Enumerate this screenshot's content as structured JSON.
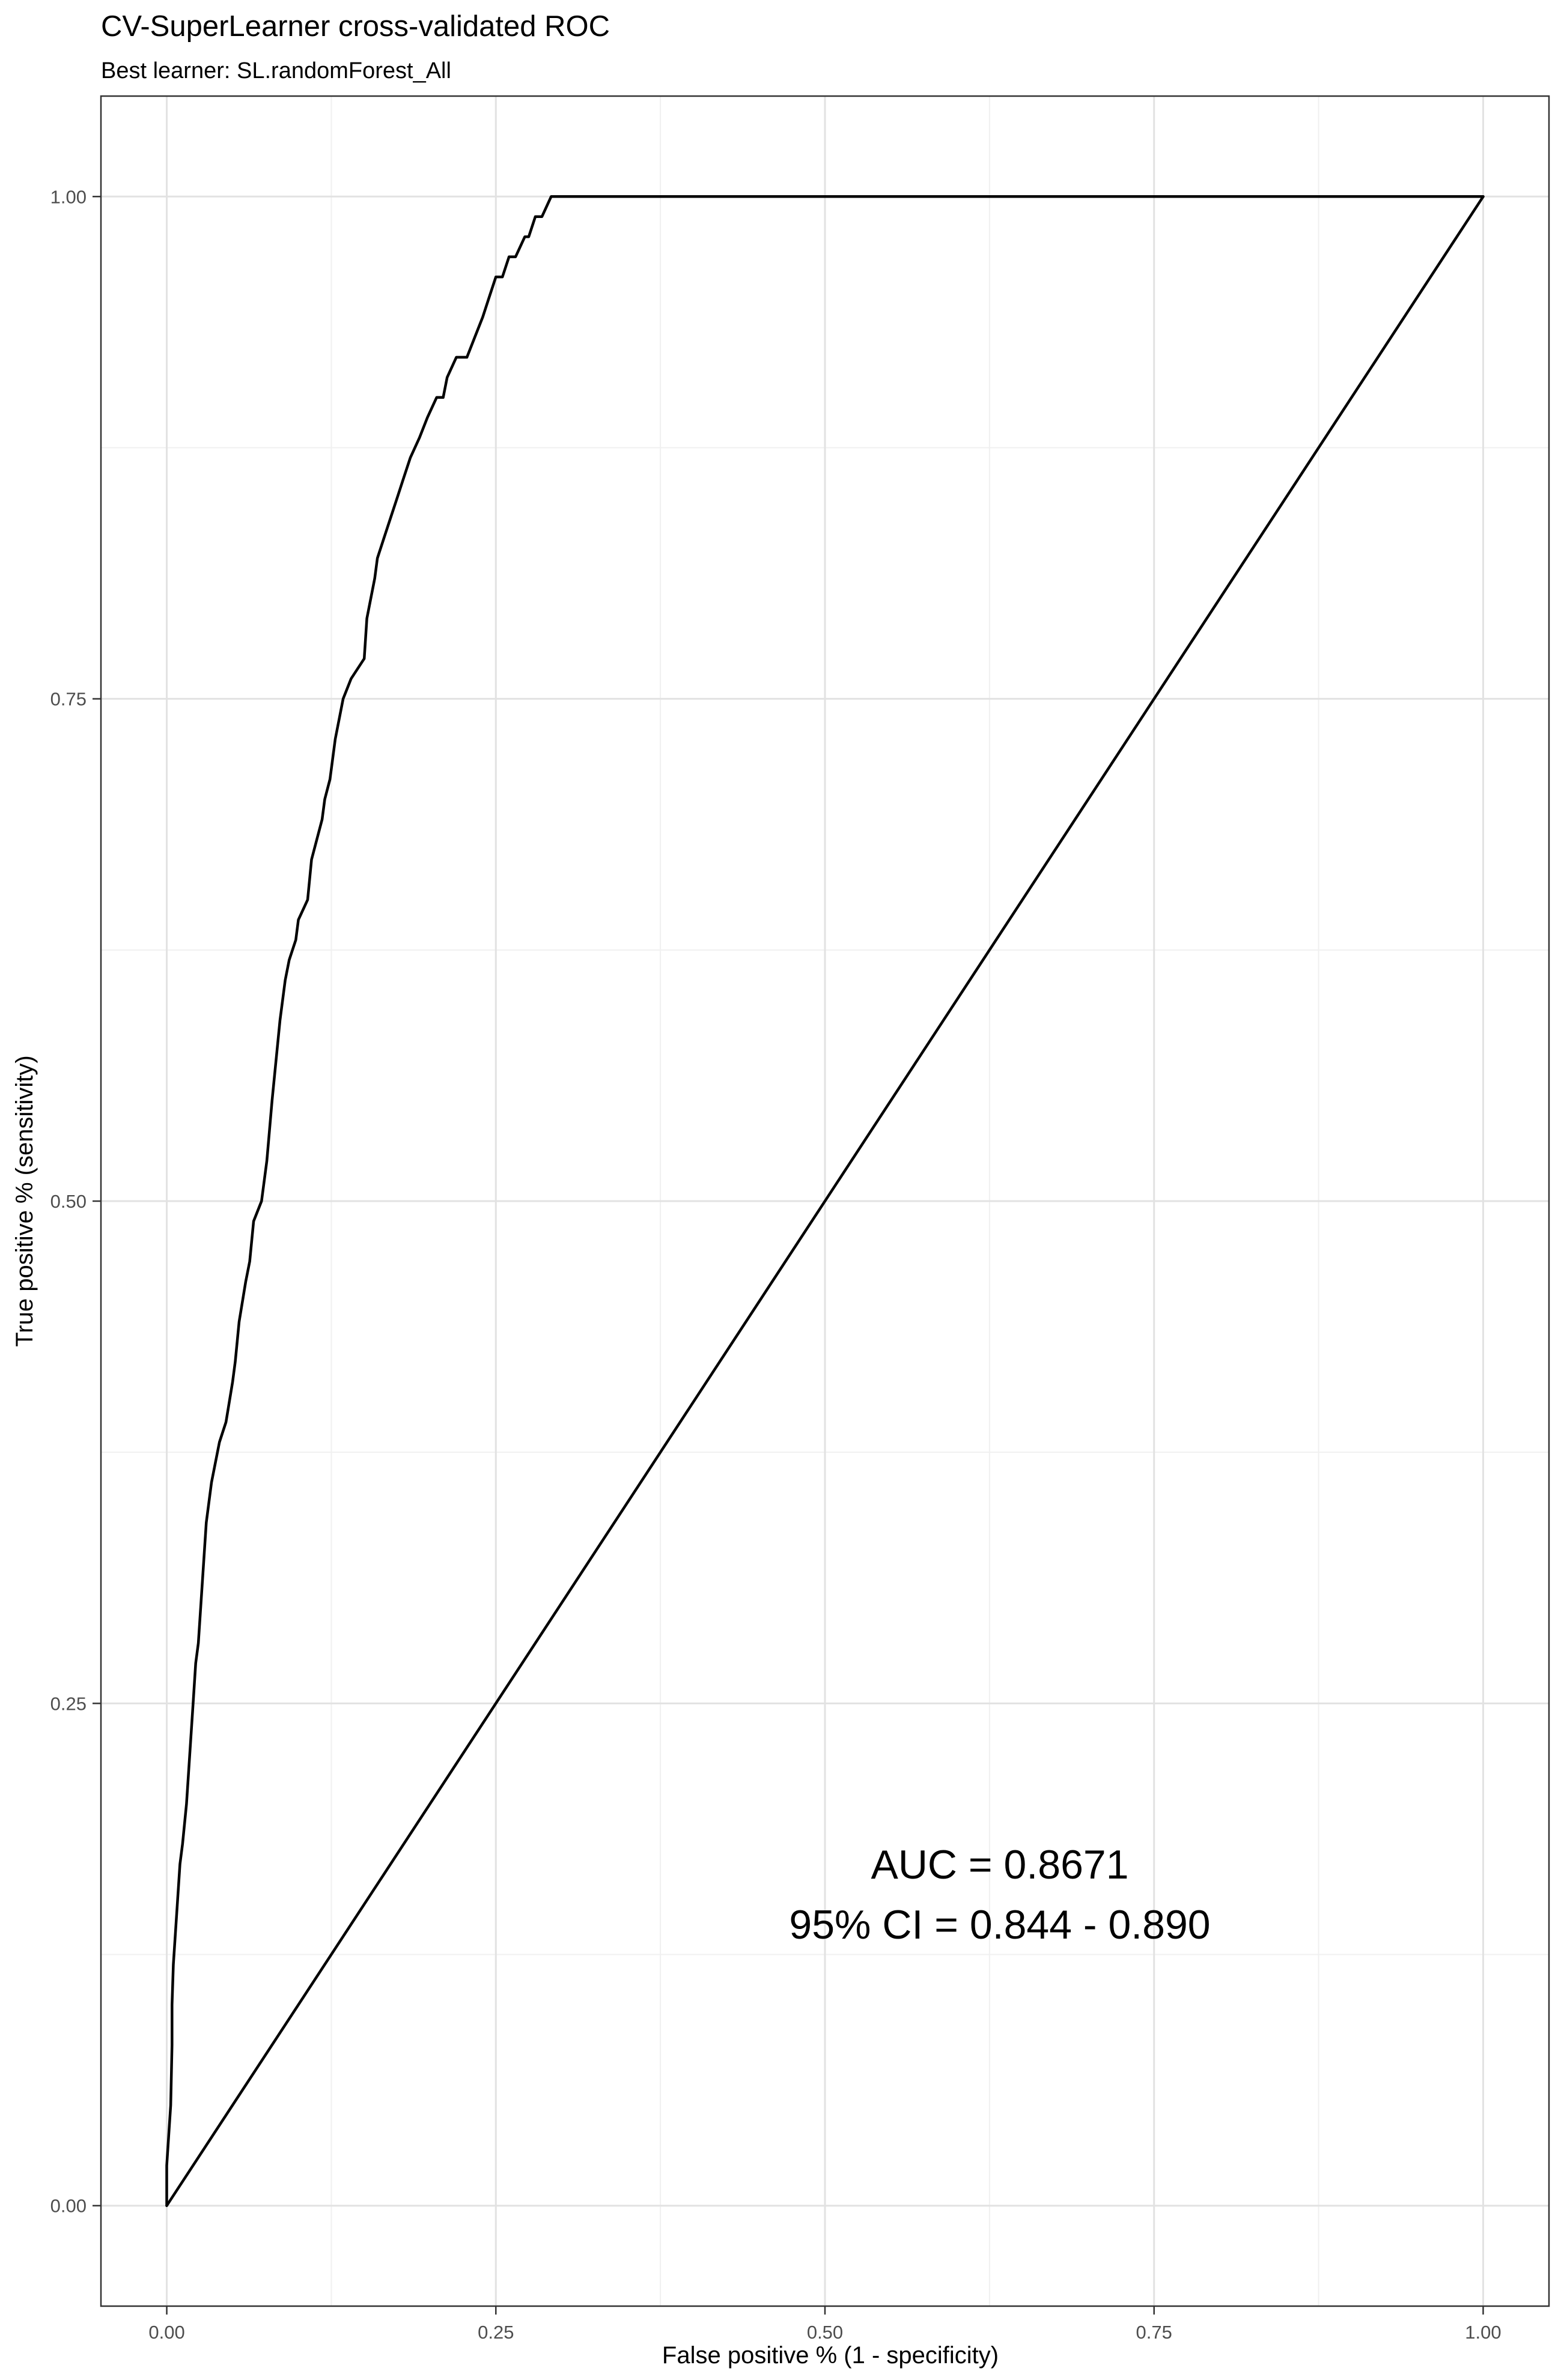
{
  "chart_data": {
    "type": "line",
    "title": "CV-SuperLearner cross-validated ROC",
    "subtitle": "Best learner: SL.randomForest_All",
    "xlabel": "False positive % (1 - specificity)",
    "ylabel": "True positive % (sensitivity)",
    "xlim": [
      -0.05,
      1.05
    ],
    "ylim": [
      -0.05,
      1.05
    ],
    "grid": true,
    "x_ticks": [
      0.0,
      0.25,
      0.5,
      0.75,
      1.0
    ],
    "x_tick_labels": [
      "0.00",
      "0.25",
      "0.50",
      "0.75",
      "1.00"
    ],
    "y_ticks": [
      0.0,
      0.25,
      0.5,
      0.75,
      1.0
    ],
    "y_tick_labels": [
      "0.00",
      "0.25",
      "0.50",
      "0.75",
      "1.00"
    ],
    "annotations": [
      "AUC = 0.8671",
      "95% CI = 0.844 - 0.890"
    ],
    "series": [
      {
        "name": "ROC",
        "color": "#000000",
        "x": [
          0.0,
          0.0,
          0.001,
          0.002,
          0.003,
          0.004,
          0.004,
          0.005,
          0.006,
          0.007,
          0.008,
          0.009,
          0.01,
          0.012,
          0.015,
          0.02,
          0.022,
          0.024,
          0.026,
          0.028,
          0.03,
          0.034,
          0.04,
          0.045,
          0.05,
          0.052,
          0.055,
          0.06,
          0.063,
          0.066,
          0.072,
          0.076,
          0.08,
          0.083,
          0.086,
          0.09,
          0.093,
          0.098,
          0.1,
          0.107,
          0.11,
          0.118,
          0.12,
          0.124,
          0.128,
          0.134,
          0.14,
          0.15,
          0.152,
          0.158,
          0.16,
          0.165,
          0.17,
          0.175,
          0.18,
          0.185,
          0.192,
          0.198,
          0.205,
          0.21,
          0.213,
          0.22,
          0.228,
          0.234,
          0.24,
          0.245,
          0.25,
          0.255,
          0.26,
          0.265,
          0.272,
          0.275,
          0.28,
          0.285,
          0.292,
          0.3,
          0.31,
          0.32,
          0.335,
          0.345,
          0.36,
          0.38,
          0.392,
          0.402,
          0.415,
          0.428,
          0.44,
          0.46,
          0.475,
          0.485,
          0.498,
          0.515,
          0.53,
          0.535,
          0.54,
          0.56,
          0.564,
          0.575,
          0.588,
          0.6,
          0.63,
          0.64,
          0.66,
          0.665,
          1.0
        ],
        "y": [
          0.0,
          0.02,
          0.03,
          0.04,
          0.05,
          0.08,
          0.1,
          0.12,
          0.13,
          0.14,
          0.15,
          0.16,
          0.17,
          0.18,
          0.2,
          0.25,
          0.27,
          0.28,
          0.3,
          0.32,
          0.34,
          0.36,
          0.38,
          0.39,
          0.41,
          0.42,
          0.44,
          0.46,
          0.47,
          0.49,
          0.5,
          0.52,
          0.55,
          0.57,
          0.59,
          0.61,
          0.62,
          0.63,
          0.64,
          0.65,
          0.67,
          0.69,
          0.7,
          0.71,
          0.73,
          0.75,
          0.76,
          0.77,
          0.79,
          0.81,
          0.82,
          0.83,
          0.84,
          0.85,
          0.86,
          0.87,
          0.88,
          0.89,
          0.9,
          0.9,
          0.91,
          0.92,
          0.92,
          0.93,
          0.94,
          0.95,
          0.96,
          0.96,
          0.97,
          0.97,
          0.98,
          0.98,
          0.99,
          0.99,
          1.0,
          1.0,
          1.0,
          1.0,
          1.0,
          1.0,
          1.0,
          1.0,
          1.0,
          1.0,
          1.0,
          1.0,
          1.0,
          1.0,
          1.0,
          1.0,
          1.0,
          1.0,
          1.0,
          1.0,
          1.0,
          1.0,
          1.0,
          1.0,
          1.0,
          1.0,
          1.0,
          1.0,
          1.0,
          1.0,
          1.0
        ]
      },
      {
        "name": "Reference diagonal",
        "color": "#000000",
        "x": [
          0.0,
          1.0
        ],
        "y": [
          0.0,
          1.0
        ]
      }
    ]
  }
}
